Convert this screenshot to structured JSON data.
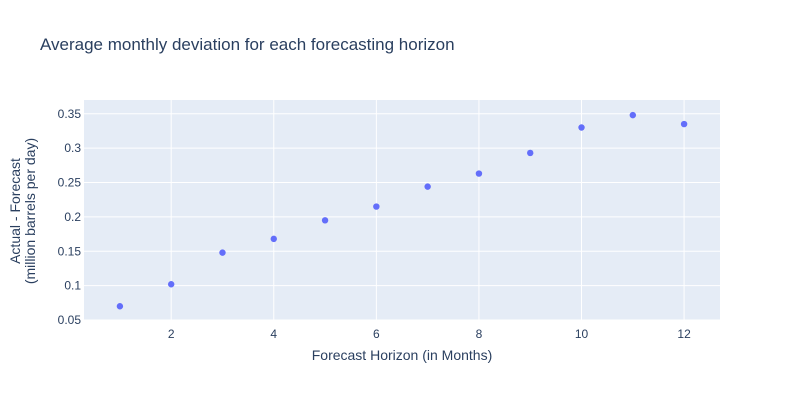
{
  "chart_data": {
    "type": "scatter",
    "title": "Average monthly deviation for each forecasting horizon",
    "xlabel": "Forecast Horizon (in Months)",
    "ylabel_lines": [
      "Actual - Forecast",
      "(million barrels per day)"
    ],
    "xlim": [
      0.3,
      12.7
    ],
    "ylim": [
      0.05,
      0.37
    ],
    "x_ticks": [
      2,
      4,
      6,
      8,
      10,
      12
    ],
    "x_tick_labels": [
      "2",
      "4",
      "6",
      "8",
      "10",
      "12"
    ],
    "y_ticks": [
      0.05,
      0.1,
      0.15,
      0.2,
      0.25,
      0.3,
      0.35
    ],
    "y_tick_labels": [
      "0.05",
      "0.1",
      "0.15",
      "0.2",
      "0.25",
      "0.3",
      "0.35"
    ],
    "grid": true,
    "series": [
      {
        "x": [
          1,
          2,
          3,
          4,
          5,
          6,
          7,
          8,
          9,
          10,
          11,
          12
        ],
        "y": [
          0.07,
          0.102,
          0.148,
          0.168,
          0.195,
          0.215,
          0.244,
          0.263,
          0.293,
          0.33,
          0.348,
          0.335
        ]
      }
    ],
    "colors": {
      "marker": "#636efa",
      "plot_bg": "#e5ecf6",
      "grid": "#ffffff",
      "text": "#2a3f5f"
    }
  }
}
